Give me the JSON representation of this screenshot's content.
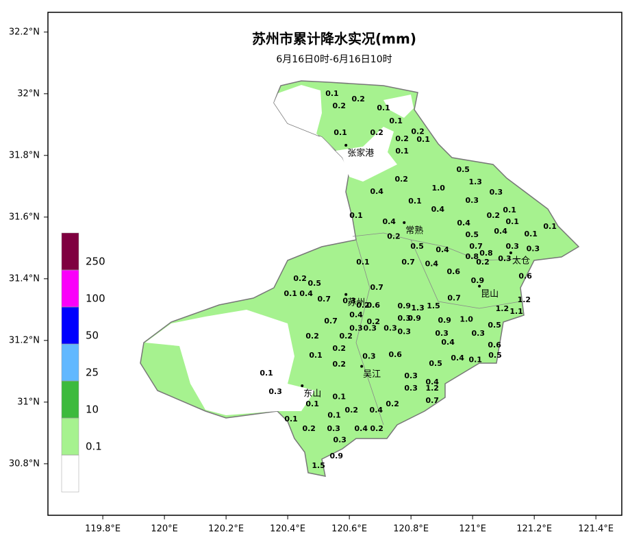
{
  "chart_data": {
    "type": "map",
    "title": "苏州市累计降水实况(mm)",
    "subtitle": "6月16日0时-6月16日10时",
    "xlim": [
      119.622,
      121.484
    ],
    "ylim": [
      30.633,
      32.264
    ],
    "xticks": [
      {
        "value": 119.8,
        "label": "119.8°E"
      },
      {
        "value": 120,
        "label": "120°E"
      },
      {
        "value": 120.2,
        "label": "120.2°E"
      },
      {
        "value": 120.4,
        "label": "120.4°E"
      },
      {
        "value": 120.6,
        "label": "120.6°E"
      },
      {
        "value": 120.8,
        "label": "120.8°E"
      },
      {
        "value": 121,
        "label": "121°E"
      },
      {
        "value": 121.2,
        "label": "121.2°E"
      },
      {
        "value": 121.4,
        "label": "121.4°E"
      }
    ],
    "yticks": [
      {
        "value": 30.8,
        "label": "30.8°N"
      },
      {
        "value": 31,
        "label": "31°N"
      },
      {
        "value": 31.2,
        "label": "31.2°N"
      },
      {
        "value": 31.4,
        "label": "31.4°N"
      },
      {
        "value": 31.6,
        "label": "31.6°N"
      },
      {
        "value": 31.8,
        "label": "31.8°N"
      },
      {
        "value": 32,
        "label": "32°N"
      },
      {
        "value": 32.2,
        "label": "32.2°N"
      }
    ],
    "legend": {
      "bounds": [
        0.1,
        10,
        25,
        50,
        100,
        250
      ],
      "colors": [
        "#ffffff",
        "#a6f28f",
        "#3dba3d",
        "#61b8ff",
        "#0000fe",
        "#fa00fa",
        "#7f0040"
      ]
    },
    "cities": [
      {
        "name": "张家港",
        "lon": 120.589,
        "lat": 31.833
      },
      {
        "name": "常熟",
        "lon": 120.778,
        "lat": 31.582
      },
      {
        "name": "太仓",
        "lon": 121.124,
        "lat": 31.484
      },
      {
        "name": "昆山",
        "lon": 121.022,
        "lat": 31.376
      },
      {
        "name": "苏州",
        "lon": 120.589,
        "lat": 31.349
      },
      {
        "name": "吴江",
        "lon": 120.64,
        "lat": 31.116
      },
      {
        "name": "东山",
        "lon": 120.447,
        "lat": 31.053
      }
    ],
    "stations": [
      {
        "lon": 120.544,
        "lat": 32.0,
        "value": 0.1
      },
      {
        "lon": 120.567,
        "lat": 31.96,
        "value": 0.2
      },
      {
        "lon": 120.629,
        "lat": 31.982,
        "value": 0.2
      },
      {
        "lon": 120.711,
        "lat": 31.953,
        "value": 0.1
      },
      {
        "lon": 120.571,
        "lat": 31.873,
        "value": 0.1
      },
      {
        "lon": 120.689,
        "lat": 31.873,
        "value": 0.2
      },
      {
        "lon": 120.751,
        "lat": 31.911,
        "value": 0.1
      },
      {
        "lon": 120.771,
        "lat": 31.853,
        "value": 0.2
      },
      {
        "lon": 120.822,
        "lat": 31.876,
        "value": 0.2
      },
      {
        "lon": 120.84,
        "lat": 31.851,
        "value": 0.1
      },
      {
        "lon": 120.771,
        "lat": 31.813,
        "value": 0.1
      },
      {
        "lon": 120.969,
        "lat": 31.753,
        "value": 0.5
      },
      {
        "lon": 121.009,
        "lat": 31.713,
        "value": 1.3
      },
      {
        "lon": 120.769,
        "lat": 31.722,
        "value": 0.2
      },
      {
        "lon": 120.889,
        "lat": 31.693,
        "value": 1.0,
        "value_label": "1.0"
      },
      {
        "lon": 120.689,
        "lat": 31.682,
        "value": 0.4
      },
      {
        "lon": 121.076,
        "lat": 31.68,
        "value": 0.3
      },
      {
        "lon": 120.813,
        "lat": 31.651,
        "value": 0.1
      },
      {
        "lon": 120.998,
        "lat": 31.653,
        "value": 0.3
      },
      {
        "lon": 120.887,
        "lat": 31.624,
        "value": 0.4
      },
      {
        "lon": 121.12,
        "lat": 31.622,
        "value": 0.1
      },
      {
        "lon": 120.622,
        "lat": 31.604,
        "value": 0.1
      },
      {
        "lon": 121.067,
        "lat": 31.604,
        "value": 0.2
      },
      {
        "lon": 121.129,
        "lat": 31.584,
        "value": 0.1
      },
      {
        "lon": 121.251,
        "lat": 31.569,
        "value": 0.1
      },
      {
        "lon": 120.729,
        "lat": 31.584,
        "value": 0.4
      },
      {
        "lon": 120.971,
        "lat": 31.58,
        "value": 0.4
      },
      {
        "lon": 121.091,
        "lat": 31.553,
        "value": 0.4
      },
      {
        "lon": 121.189,
        "lat": 31.544,
        "value": 0.1
      },
      {
        "lon": 120.744,
        "lat": 31.536,
        "value": 0.2
      },
      {
        "lon": 120.998,
        "lat": 31.542,
        "value": 0.5
      },
      {
        "lon": 121.129,
        "lat": 31.504,
        "value": 0.3
      },
      {
        "lon": 121.196,
        "lat": 31.496,
        "value": 0.3
      },
      {
        "lon": 120.82,
        "lat": 31.504,
        "value": 0.5
      },
      {
        "lon": 120.902,
        "lat": 31.493,
        "value": 0.4
      },
      {
        "lon": 121.011,
        "lat": 31.504,
        "value": 0.7
      },
      {
        "lon": 121.044,
        "lat": 31.482,
        "value": 0.8
      },
      {
        "lon": 120.998,
        "lat": 31.471,
        "value": 0.8
      },
      {
        "lon": 121.033,
        "lat": 31.453,
        "value": 0.2
      },
      {
        "lon": 121.104,
        "lat": 31.464,
        "value": 0.3
      },
      {
        "lon": 120.791,
        "lat": 31.453,
        "value": 0.7
      },
      {
        "lon": 120.867,
        "lat": 31.447,
        "value": 0.4
      },
      {
        "lon": 120.644,
        "lat": 31.453,
        "value": 0.1
      },
      {
        "lon": 121.171,
        "lat": 31.407,
        "value": 0.6
      },
      {
        "lon": 121.016,
        "lat": 31.393,
        "value": 0.9
      },
      {
        "lon": 120.938,
        "lat": 31.422,
        "value": 0.6
      },
      {
        "lon": 120.44,
        "lat": 31.4,
        "value": 0.2
      },
      {
        "lon": 120.487,
        "lat": 31.384,
        "value": 0.5
      },
      {
        "lon": 120.409,
        "lat": 31.351,
        "value": 0.1
      },
      {
        "lon": 120.46,
        "lat": 31.351,
        "value": 0.4
      },
      {
        "lon": 120.518,
        "lat": 31.333,
        "value": 0.7
      },
      {
        "lon": 120.689,
        "lat": 31.371,
        "value": 0.7
      },
      {
        "lon": 120.94,
        "lat": 31.336,
        "value": 0.7
      },
      {
        "lon": 121.167,
        "lat": 31.331,
        "value": 1.2
      },
      {
        "lon": 121.096,
        "lat": 31.302,
        "value": 1.2
      },
      {
        "lon": 121.142,
        "lat": 31.293,
        "value": 1.1
      },
      {
        "lon": 120.873,
        "lat": 31.311,
        "value": 1.5
      },
      {
        "lon": 120.909,
        "lat": 31.264,
        "value": 0.9
      },
      {
        "lon": 120.98,
        "lat": 31.267,
        "value": 1.0,
        "value_label": "1.0"
      },
      {
        "lon": 120.54,
        "lat": 31.262,
        "value": 0.7
      },
      {
        "lon": 121.071,
        "lat": 31.249,
        "value": 0.5
      },
      {
        "lon": 120.9,
        "lat": 31.222,
        "value": 0.3
      },
      {
        "lon": 121.018,
        "lat": 31.222,
        "value": 0.3
      },
      {
        "lon": 120.48,
        "lat": 31.213,
        "value": 0.2
      },
      {
        "lon": 120.589,
        "lat": 31.213,
        "value": 0.2
      },
      {
        "lon": 120.92,
        "lat": 31.193,
        "value": 0.4
      },
      {
        "lon": 121.071,
        "lat": 31.184,
        "value": 0.6
      },
      {
        "lon": 120.491,
        "lat": 31.151,
        "value": 0.1
      },
      {
        "lon": 120.567,
        "lat": 31.173,
        "value": 0.2
      },
      {
        "lon": 120.749,
        "lat": 31.153,
        "value": 0.6
      },
      {
        "lon": 121.073,
        "lat": 31.151,
        "value": 0.5
      },
      {
        "lon": 120.951,
        "lat": 31.142,
        "value": 0.4
      },
      {
        "lon": 121.009,
        "lat": 31.136,
        "value": 0.1
      },
      {
        "lon": 120.88,
        "lat": 31.124,
        "value": 0.5
      },
      {
        "lon": 120.567,
        "lat": 31.122,
        "value": 0.2
      },
      {
        "lon": 120.664,
        "lat": 31.147,
        "value": 0.3
      },
      {
        "lon": 120.331,
        "lat": 31.093,
        "value": 0.1
      },
      {
        "lon": 120.36,
        "lat": 31.033,
        "value": 0.3
      },
      {
        "lon": 120.8,
        "lat": 31.084,
        "value": 0.3
      },
      {
        "lon": 120.869,
        "lat": 31.064,
        "value": 0.4
      },
      {
        "lon": 120.8,
        "lat": 31.044,
        "value": 0.3
      },
      {
        "lon": 120.869,
        "lat": 31.044,
        "value": 1.2
      },
      {
        "lon": 120.869,
        "lat": 31.004,
        "value": 0.7
      },
      {
        "lon": 120.567,
        "lat": 31.016,
        "value": 0.1
      },
      {
        "lon": 120.74,
        "lat": 30.993,
        "value": 0.2
      },
      {
        "lon": 120.48,
        "lat": 30.993,
        "value": 0.1
      },
      {
        "lon": 120.607,
        "lat": 30.973,
        "value": 0.2
      },
      {
        "lon": 120.687,
        "lat": 30.973,
        "value": 0.4
      },
      {
        "lon": 120.551,
        "lat": 30.956,
        "value": 0.1
      },
      {
        "lon": 120.411,
        "lat": 30.944,
        "value": 0.1
      },
      {
        "lon": 120.469,
        "lat": 30.913,
        "value": 0.2
      },
      {
        "lon": 120.549,
        "lat": 30.913,
        "value": 0.3
      },
      {
        "lon": 120.638,
        "lat": 30.913,
        "value": 0.4
      },
      {
        "lon": 120.689,
        "lat": 30.913,
        "value": 0.2
      },
      {
        "lon": 120.569,
        "lat": 30.876,
        "value": 0.3
      },
      {
        "lon": 120.558,
        "lat": 30.824,
        "value": 0.9
      },
      {
        "lon": 120.5,
        "lat": 30.793,
        "value": 1.5
      },
      {
        "lon": 120.6,
        "lat": 31.327,
        "value": 0.3
      },
      {
        "lon": 120.644,
        "lat": 31.313,
        "value": 0.2
      },
      {
        "lon": 120.678,
        "lat": 31.313,
        "value": 0.6
      },
      {
        "lon": 120.622,
        "lat": 31.282,
        "value": 0.4
      },
      {
        "lon": 120.678,
        "lat": 31.26,
        "value": 0.2
      },
      {
        "lon": 120.622,
        "lat": 31.238,
        "value": 0.3
      },
      {
        "lon": 120.667,
        "lat": 31.238,
        "value": 0.3
      },
      {
        "lon": 120.778,
        "lat": 31.311,
        "value": 0.9
      },
      {
        "lon": 120.822,
        "lat": 31.304,
        "value": 1.3
      },
      {
        "lon": 120.778,
        "lat": 31.271,
        "value": 0.3
      },
      {
        "lon": 120.811,
        "lat": 31.271,
        "value": 0.9
      },
      {
        "lon": 120.733,
        "lat": 31.238,
        "value": 0.3
      },
      {
        "lon": 120.778,
        "lat": 31.227,
        "value": 0.3
      }
    ]
  }
}
